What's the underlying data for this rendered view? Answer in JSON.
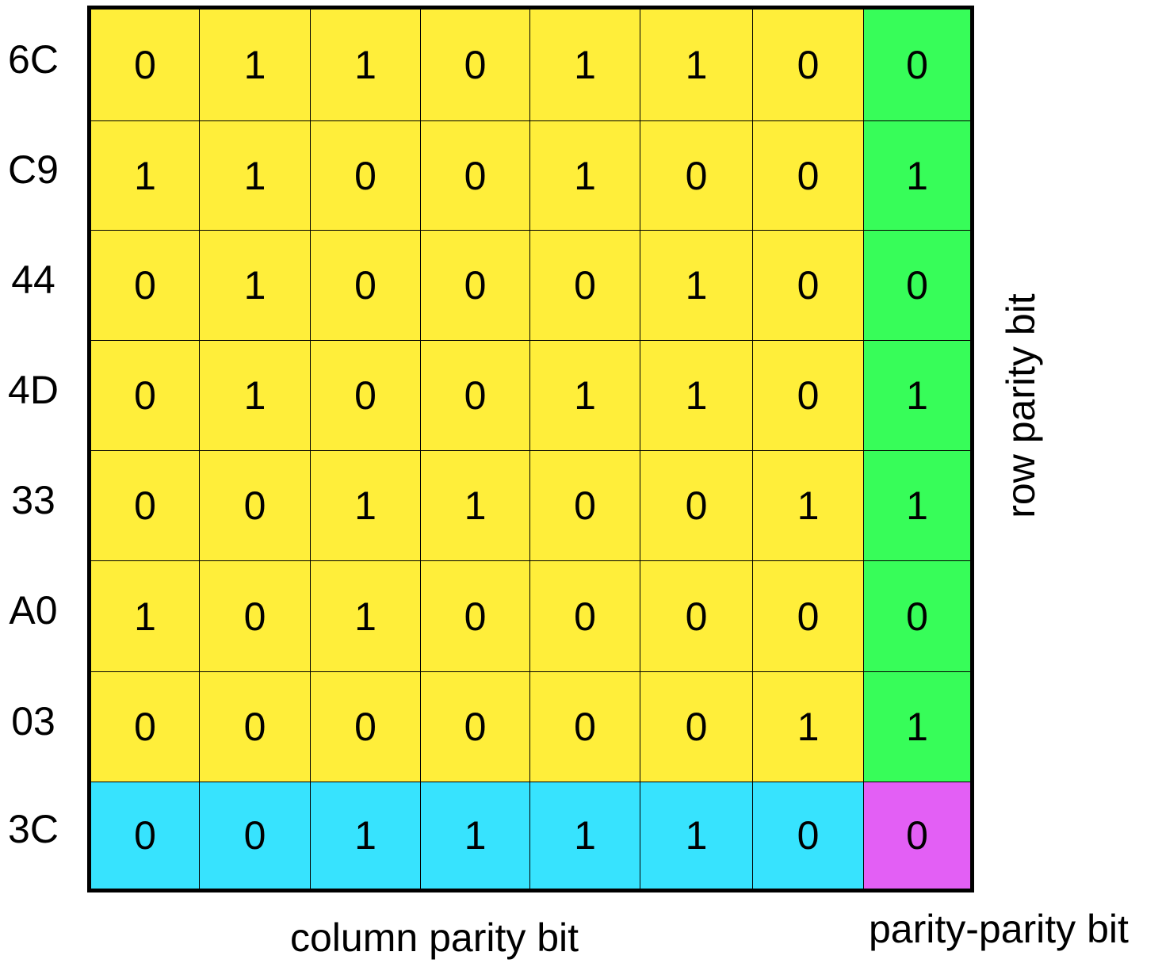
{
  "colors": {
    "data": "#ffee3a",
    "row_parity": "#37fd59",
    "column_parity": "#37e3fe",
    "parity_parity": "#e35ff5",
    "border": "#000000"
  },
  "row_labels": [
    "6C",
    "C9",
    "44",
    "4D",
    "33",
    "A0",
    "03",
    "3C"
  ],
  "rows": [
    [
      0,
      1,
      1,
      0,
      1,
      1,
      0,
      0
    ],
    [
      1,
      1,
      0,
      0,
      1,
      0,
      0,
      1
    ],
    [
      0,
      1,
      0,
      0,
      0,
      1,
      0,
      0
    ],
    [
      0,
      1,
      0,
      0,
      1,
      1,
      0,
      1
    ],
    [
      0,
      0,
      1,
      1,
      0,
      0,
      1,
      1
    ],
    [
      1,
      0,
      1,
      0,
      0,
      0,
      0,
      0
    ],
    [
      0,
      0,
      0,
      0,
      0,
      0,
      1,
      1
    ],
    [
      0,
      0,
      1,
      1,
      1,
      1,
      0,
      0
    ]
  ],
  "labels": {
    "row_parity": "row parity bit",
    "column_parity": "column parity bit",
    "parity_parity": "parity-parity bit"
  }
}
